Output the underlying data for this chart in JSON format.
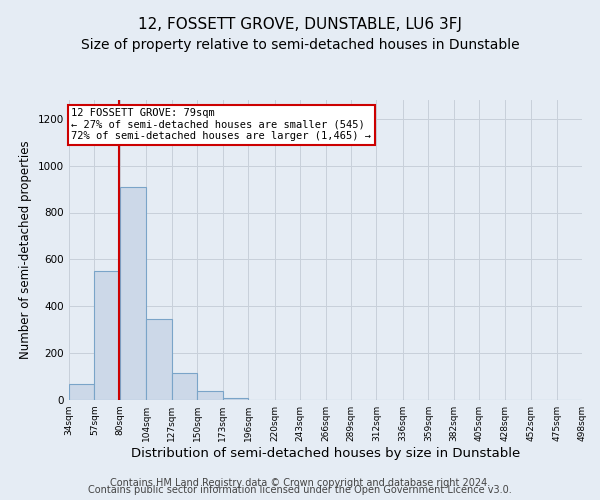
{
  "title": "12, FOSSETT GROVE, DUNSTABLE, LU6 3FJ",
  "subtitle": "Size of property relative to semi-detached houses in Dunstable",
  "xlabel": "Distribution of semi-detached houses by size in Dunstable",
  "ylabel": "Number of semi-detached properties",
  "bin_edges": [
    34,
    57,
    80,
    104,
    127,
    150,
    173,
    196,
    220,
    243,
    266,
    289,
    312,
    336,
    359,
    382,
    405,
    428,
    452,
    475,
    498
  ],
  "bar_heights": [
    70,
    550,
    910,
    345,
    115,
    38,
    10,
    0,
    0,
    0,
    0,
    0,
    0,
    0,
    0,
    0,
    0,
    0,
    0,
    0
  ],
  "bar_color": "#ccd8e8",
  "bar_edge_color": "#7aa4c8",
  "property_size": 79,
  "property_line_color": "#cc0000",
  "annotation_line1": "12 FOSSETT GROVE: 79sqm",
  "annotation_line2": "← 27% of semi-detached houses are smaller (545)",
  "annotation_line3": "72% of semi-detached houses are larger (1,465) →",
  "annotation_box_color": "#ffffff",
  "annotation_box_edge_color": "#cc0000",
  "ylim": [
    0,
    1280
  ],
  "yticks": [
    0,
    200,
    400,
    600,
    800,
    1000,
    1200
  ],
  "tick_labels": [
    "34sqm",
    "57sqm",
    "80sqm",
    "104sqm",
    "127sqm",
    "150sqm",
    "173sqm",
    "196sqm",
    "220sqm",
    "243sqm",
    "266sqm",
    "289sqm",
    "312sqm",
    "336sqm",
    "359sqm",
    "382sqm",
    "405sqm",
    "428sqm",
    "452sqm",
    "475sqm",
    "498sqm"
  ],
  "footer_line1": "Contains HM Land Registry data © Crown copyright and database right 2024.",
  "footer_line2": "Contains public sector information licensed under the Open Government Licence v3.0.",
  "background_color": "#e5ecf4",
  "plot_background_color": "#e5ecf4",
  "grid_color": "#c8d0da",
  "title_fontsize": 11,
  "subtitle_fontsize": 10,
  "xlabel_fontsize": 9.5,
  "ylabel_fontsize": 8.5,
  "footer_fontsize": 7
}
